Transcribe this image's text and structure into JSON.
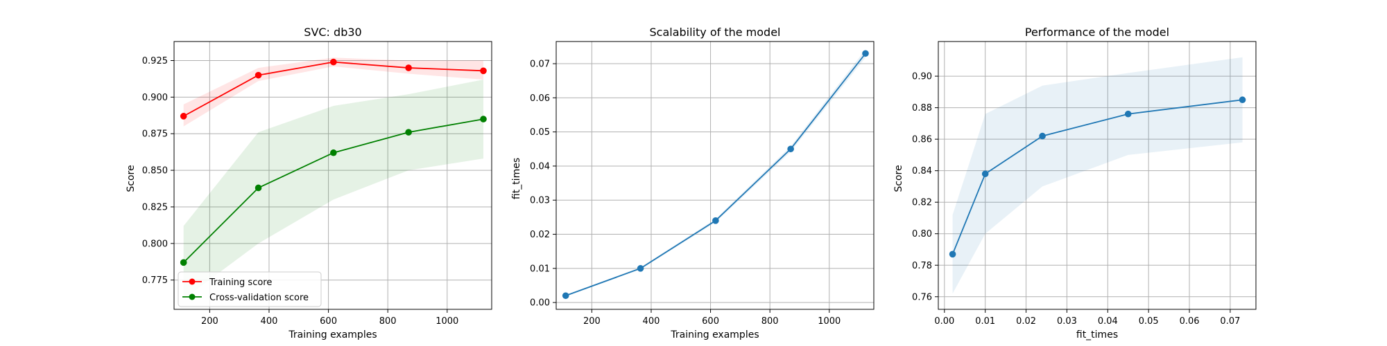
{
  "chart_data": [
    {
      "type": "line",
      "title": "SVC: db30",
      "xlabel": "Training examples",
      "ylabel": "Score",
      "xlim": [
        80,
        1150
      ],
      "ylim": [
        0.755,
        0.938
      ],
      "x_ticks": [
        200,
        400,
        600,
        800,
        1000
      ],
      "y_ticks": [
        0.775,
        0.8,
        0.825,
        0.85,
        0.875,
        0.9,
        0.925
      ],
      "y_tick_labels": [
        "0.775",
        "0.800",
        "0.825",
        "0.850",
        "0.875",
        "0.900",
        "0.925"
      ],
      "grid": true,
      "legend_position": "lower-left",
      "x": [
        112,
        364,
        617,
        870,
        1122
      ],
      "series": [
        {
          "name": "Training score",
          "color": "#ff0000",
          "values": [
            0.887,
            0.915,
            0.924,
            0.92,
            0.918
          ],
          "band_low": [
            0.88,
            0.911,
            0.921,
            0.916,
            0.912
          ],
          "band_high": [
            0.895,
            0.92,
            0.927,
            0.925,
            0.925
          ]
        },
        {
          "name": "Cross-validation score",
          "color": "#008000",
          "values": [
            0.787,
            0.838,
            0.862,
            0.876,
            0.885
          ],
          "band_low": [
            0.762,
            0.8,
            0.83,
            0.85,
            0.858
          ],
          "band_high": [
            0.812,
            0.876,
            0.894,
            0.902,
            0.912
          ]
        }
      ]
    },
    {
      "type": "line",
      "title": "Scalability of the model",
      "xlabel": "Training examples",
      "ylabel": "fit_times",
      "xlim": [
        80,
        1150
      ],
      "ylim": [
        -0.002,
        0.0765
      ],
      "x_ticks": [
        200,
        400,
        600,
        800,
        1000
      ],
      "y_ticks": [
        0.0,
        0.01,
        0.02,
        0.03,
        0.04,
        0.05,
        0.06,
        0.07
      ],
      "y_tick_labels": [
        "0.00",
        "0.01",
        "0.02",
        "0.03",
        "0.04",
        "0.05",
        "0.06",
        "0.07"
      ],
      "grid": true,
      "x": [
        112,
        364,
        617,
        870,
        1122
      ],
      "series": [
        {
          "color": "#1f77b4",
          "values": [
            0.002,
            0.01,
            0.024,
            0.045,
            0.073
          ],
          "band_low": [
            0.0018,
            0.0097,
            0.0235,
            0.0442,
            0.0718
          ],
          "band_high": [
            0.0022,
            0.0103,
            0.0245,
            0.0458,
            0.0742
          ]
        }
      ]
    },
    {
      "type": "line",
      "title": "Performance of the model",
      "xlabel": "fit_times",
      "ylabel": "Score",
      "xlim": [
        -0.0015,
        0.0763
      ],
      "ylim": [
        0.752,
        0.922
      ],
      "x_ticks": [
        0.0,
        0.01,
        0.02,
        0.03,
        0.04,
        0.05,
        0.06,
        0.07
      ],
      "x_tick_labels": [
        "0.00",
        "0.01",
        "0.02",
        "0.03",
        "0.04",
        "0.05",
        "0.06",
        "0.07"
      ],
      "y_ticks": [
        0.76,
        0.78,
        0.8,
        0.82,
        0.84,
        0.86,
        0.88,
        0.9
      ],
      "y_tick_labels": [
        "0.76",
        "0.78",
        "0.80",
        "0.82",
        "0.84",
        "0.86",
        "0.88",
        "0.90"
      ],
      "grid": true,
      "x": [
        0.002,
        0.01,
        0.024,
        0.045,
        0.073
      ],
      "series": [
        {
          "color": "#1f77b4",
          "values": [
            0.787,
            0.838,
            0.862,
            0.876,
            0.885
          ],
          "band_low": [
            0.762,
            0.8,
            0.83,
            0.85,
            0.858
          ],
          "band_high": [
            0.812,
            0.876,
            0.894,
            0.902,
            0.912
          ]
        }
      ]
    }
  ]
}
